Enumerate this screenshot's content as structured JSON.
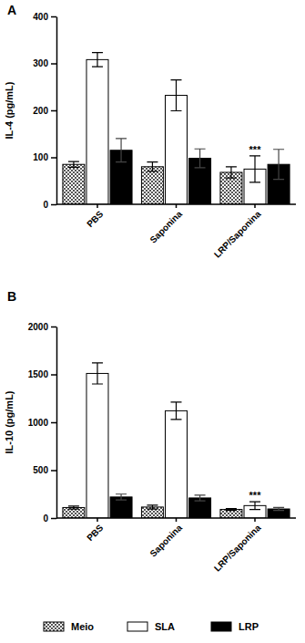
{
  "chart_data": [
    {
      "type": "bar",
      "title": "A",
      "y_label": "IL-4 (pg/mL)",
      "categories": [
        "PBS",
        "Saponina",
        "LRP/Saponina"
      ],
      "series": [
        {
          "name": "Meio",
          "color": "#555555",
          "values": [
            85,
            80,
            68
          ],
          "errors": [
            6,
            10,
            12
          ]
        },
        {
          "name": "SLA",
          "color": "#ffffff",
          "values": [
            308,
            232,
            75
          ],
          "errors": [
            15,
            33,
            28
          ]
        },
        {
          "name": "LRP",
          "color": "#000000",
          "values": [
            115,
            98,
            85
          ],
          "errors": [
            25,
            20,
            32
          ]
        }
      ],
      "ylim": [
        0,
        400
      ],
      "yticks": [
        0,
        100,
        200,
        300,
        400
      ],
      "annotations": [
        {
          "text": "***",
          "category": "LRP/Saponina",
          "series": "SLA"
        }
      ]
    },
    {
      "type": "bar",
      "title": "B",
      "y_label": "IL-10 (pg/mL)",
      "categories": [
        "PBS",
        "Saponina",
        "LRP/Saponina"
      ],
      "series": [
        {
          "name": "Meio",
          "color": "#555555",
          "values": [
            110,
            115,
            90
          ],
          "errors": [
            15,
            20,
            10
          ]
        },
        {
          "name": "SLA",
          "color": "#ffffff",
          "values": [
            1510,
            1120,
            130
          ],
          "errors": [
            110,
            90,
            40
          ]
        },
        {
          "name": "LRP",
          "color": "#000000",
          "values": [
            220,
            210,
            95
          ],
          "errors": [
            30,
            30,
            15
          ]
        }
      ],
      "ylim": [
        0,
        2000
      ],
      "yticks": [
        0,
        500,
        1000,
        1500,
        2000
      ],
      "annotations": [
        {
          "text": "***",
          "category": "LRP/Saponina",
          "series": "SLA"
        }
      ],
      "legend": "bottom"
    }
  ]
}
